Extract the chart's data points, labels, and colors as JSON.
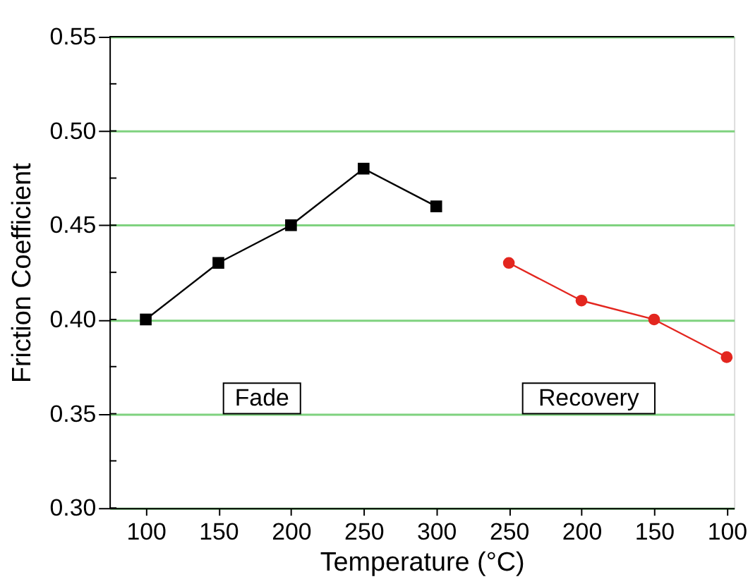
{
  "chart_data": {
    "type": "line",
    "xlabel": "Temperature (°C)",
    "ylabel": "Friction Coefficient",
    "categories": [
      "100",
      "150",
      "200",
      "250",
      "300",
      "250",
      "200",
      "150",
      "100"
    ],
    "series": [
      {
        "name": "Fade",
        "color": "#000000",
        "marker": "square",
        "values": [
          0.4,
          0.43,
          0.45,
          0.48,
          0.46,
          null,
          null,
          null,
          null
        ]
      },
      {
        "name": "Recovery",
        "color": "#e3261f",
        "marker": "circle",
        "values": [
          null,
          null,
          null,
          null,
          null,
          0.43,
          0.41,
          0.4,
          0.38
        ]
      }
    ],
    "ylim": [
      0.3,
      0.55
    ],
    "yticks": [
      {
        "value": 0.3,
        "label": "0.30"
      },
      {
        "value": 0.35,
        "label": "0.35"
      },
      {
        "value": 0.4,
        "label": "0.40"
      },
      {
        "value": 0.45,
        "label": "0.45"
      },
      {
        "value": 0.5,
        "label": "0.50"
      },
      {
        "value": 0.55,
        "label": "0.55"
      }
    ],
    "grid": "y",
    "legend": false,
    "line_style": "solid"
  }
}
